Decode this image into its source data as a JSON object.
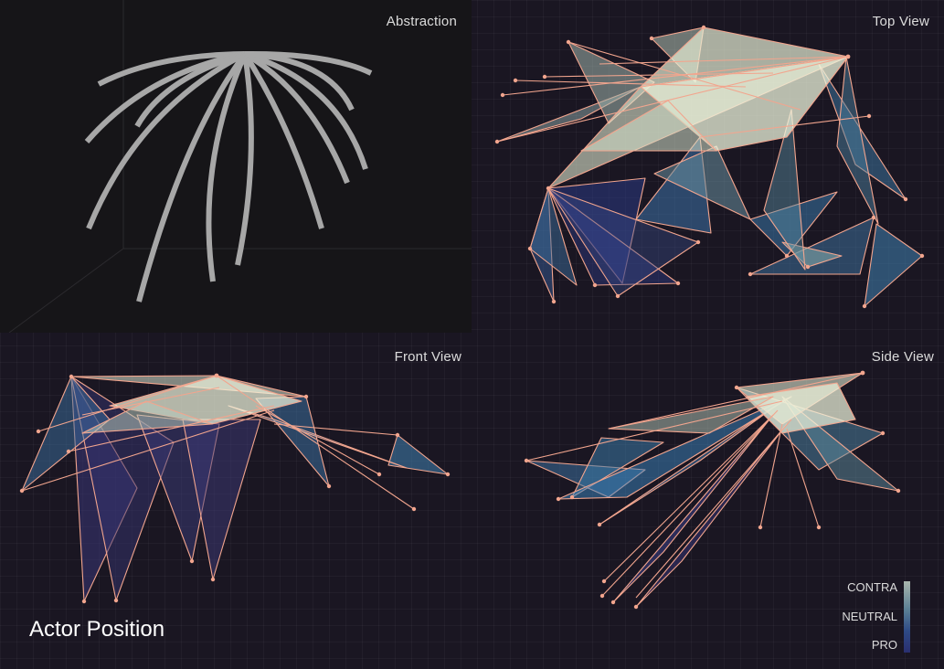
{
  "title": "Actor Position",
  "views": {
    "abstraction": "Abstraction",
    "top": "Top View",
    "front": "Front View",
    "side": "Side View"
  },
  "legend": {
    "labels": [
      "CONTRA",
      "NEUTRAL",
      "PRO"
    ],
    "colors": [
      "#a9b6ad",
      "#5a7f95",
      "#2a2f70"
    ]
  },
  "colors": {
    "background": "#1a1622",
    "abstraction_background": "#161518",
    "curve": "#a7a7a7",
    "edge": "#f2a58e",
    "highlight": "#eef4dc"
  }
}
